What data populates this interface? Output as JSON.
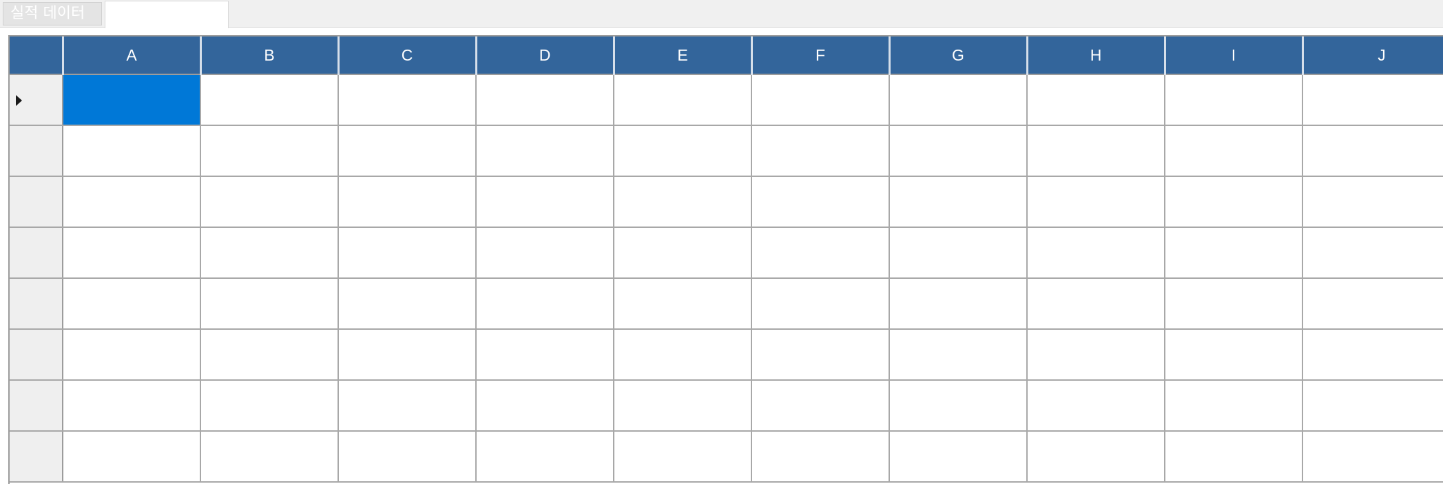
{
  "tab": {
    "label": "실적 데이터",
    "field_value": ""
  },
  "grid": {
    "columns": [
      "A",
      "B",
      "C",
      "D",
      "E",
      "F",
      "G",
      "H",
      "I",
      "J"
    ],
    "rows": [
      {
        "current": true,
        "cells": [
          "",
          "",
          "",
          "",
          "",
          "",
          "",
          "",
          "",
          ""
        ]
      },
      {
        "current": false,
        "cells": [
          "",
          "",
          "",
          "",
          "",
          "",
          "",
          "",
          "",
          ""
        ]
      },
      {
        "current": false,
        "cells": [
          "",
          "",
          "",
          "",
          "",
          "",
          "",
          "",
          "",
          ""
        ]
      },
      {
        "current": false,
        "cells": [
          "",
          "",
          "",
          "",
          "",
          "",
          "",
          "",
          "",
          ""
        ]
      },
      {
        "current": false,
        "cells": [
          "",
          "",
          "",
          "",
          "",
          "",
          "",
          "",
          "",
          ""
        ]
      },
      {
        "current": false,
        "cells": [
          "",
          "",
          "",
          "",
          "",
          "",
          "",
          "",
          "",
          ""
        ]
      },
      {
        "current": false,
        "cells": [
          "",
          "",
          "",
          "",
          "",
          "",
          "",
          "",
          "",
          ""
        ]
      },
      {
        "current": false,
        "cells": [
          "",
          "",
          "",
          "",
          "",
          "",
          "",
          "",
          "",
          ""
        ]
      }
    ],
    "selected_cell": {
      "row": 1,
      "column": "A"
    },
    "icons": {
      "row_pointer": "row-pointer-icon"
    },
    "colors": {
      "header_bg": "#33659b",
      "header_text": "#ffffff",
      "selected_cell_bg": "#0078d7",
      "row_header_bg": "#efefef",
      "gridline": "#a8a8a8"
    }
  }
}
